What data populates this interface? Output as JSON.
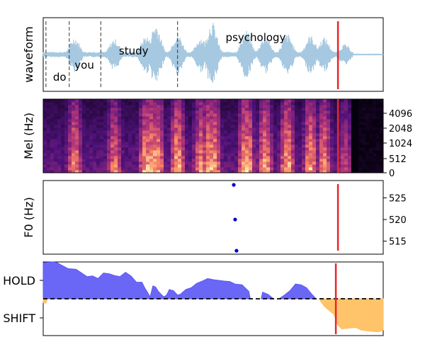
{
  "chart_data": [
    {
      "type": "line",
      "ylabel": "waveform",
      "words": [
        {
          "text": "do",
          "t": 0.12
        },
        {
          "text": "you",
          "t": 0.3
        },
        {
          "text": "study",
          "t": 0.66
        },
        {
          "text": "psychology",
          "t": 1.55
        }
      ],
      "word_boundaries": [
        0.02,
        0.19,
        0.42,
        0.98
      ],
      "speech_end": 2.26,
      "xlim": [
        0,
        2.48
      ],
      "cursor_t": 2.15,
      "wave_color": "#a6c8e0",
      "cursor_color": "#e8262a"
    },
    {
      "type": "heatmap",
      "ylabel": "Mel (Hz)",
      "yticks": [
        0,
        512,
        1024,
        2048,
        4096
      ],
      "colormap": "magma",
      "cursor_t": 2.15
    },
    {
      "type": "scatter",
      "ylabel": "F0 (Hz)",
      "yticks": [
        515,
        520,
        525
      ],
      "ylim": [
        512,
        529
      ],
      "points": [
        {
          "t": 1.39,
          "f0": 528.0
        },
        {
          "t": 1.4,
          "f0": 520.0
        },
        {
          "t": 1.41,
          "f0": 512.8
        }
      ],
      "point_color": "#0000cc",
      "cursor_t": 2.15
    },
    {
      "type": "area",
      "yticklabels": [
        "HOLD",
        "SHIFT"
      ],
      "ylim": [
        -1,
        1
      ],
      "hold_color": "#5b57f5",
      "shift_color": "#ffc062",
      "cursor_t": 2.15,
      "hold_series": [
        [
          0.0,
          0.98
        ],
        [
          0.07,
          1.0
        ],
        [
          0.1,
          0.98
        ],
        [
          0.14,
          0.9
        ],
        [
          0.18,
          0.82
        ],
        [
          0.24,
          0.8
        ],
        [
          0.28,
          0.7
        ],
        [
          0.32,
          0.6
        ],
        [
          0.36,
          0.62
        ],
        [
          0.4,
          0.55
        ],
        [
          0.44,
          0.7
        ],
        [
          0.48,
          0.68
        ],
        [
          0.52,
          0.63
        ],
        [
          0.56,
          0.6
        ],
        [
          0.6,
          0.72
        ],
        [
          0.64,
          0.62
        ],
        [
          0.68,
          0.45
        ],
        [
          0.72,
          0.45
        ],
        [
          0.74,
          0.3
        ],
        [
          0.76,
          0.18
        ],
        [
          0.78,
          0.05
        ],
        [
          0.8,
          0.35
        ],
        [
          0.82,
          0.32
        ],
        [
          0.84,
          0.2
        ],
        [
          0.86,
          0.12
        ],
        [
          0.88,
          0.05
        ],
        [
          0.9,
          0.1
        ],
        [
          0.92,
          0.25
        ],
        [
          0.95,
          0.22
        ],
        [
          0.98,
          0.1
        ],
        [
          1.0,
          0.12
        ],
        [
          1.04,
          0.25
        ],
        [
          1.08,
          0.3
        ],
        [
          1.12,
          0.42
        ],
        [
          1.16,
          0.48
        ],
        [
          1.2,
          0.55
        ],
        [
          1.24,
          0.52
        ],
        [
          1.28,
          0.5
        ],
        [
          1.32,
          0.48
        ],
        [
          1.36,
          0.47
        ],
        [
          1.4,
          0.4
        ],
        [
          1.45,
          0.38
        ],
        [
          1.5,
          0.2
        ],
        [
          1.51,
          0.0
        ]
      ],
      "hold_series_b": [
        [
          1.59,
          0.0
        ],
        [
          1.6,
          0.18
        ],
        [
          1.64,
          0.12
        ],
        [
          1.68,
          0.0
        ]
      ],
      "hold_series_c": [
        [
          1.72,
          0.0
        ],
        [
          1.76,
          0.1
        ],
        [
          1.8,
          0.22
        ],
        [
          1.84,
          0.4
        ],
        [
          1.88,
          0.38
        ],
        [
          1.92,
          0.3
        ],
        [
          1.96,
          0.12
        ],
        [
          1.99,
          0.0
        ]
      ],
      "shift_series": [
        [
          0.0,
          -0.1
        ],
        [
          0.02,
          -0.12
        ],
        [
          0.03,
          0.0
        ]
      ],
      "shift_series_b": [
        [
          2.02,
          -0.05
        ],
        [
          2.05,
          -0.2
        ],
        [
          2.08,
          -0.3
        ],
        [
          2.12,
          -0.42
        ],
        [
          2.15,
          -0.72
        ],
        [
          2.18,
          -0.82
        ],
        [
          2.22,
          -0.8
        ],
        [
          2.28,
          -0.78
        ],
        [
          2.32,
          -0.85
        ],
        [
          2.38,
          -0.88
        ],
        [
          2.44,
          -0.9
        ],
        [
          2.46,
          -0.88
        ],
        [
          2.48,
          -0.85
        ]
      ]
    }
  ]
}
